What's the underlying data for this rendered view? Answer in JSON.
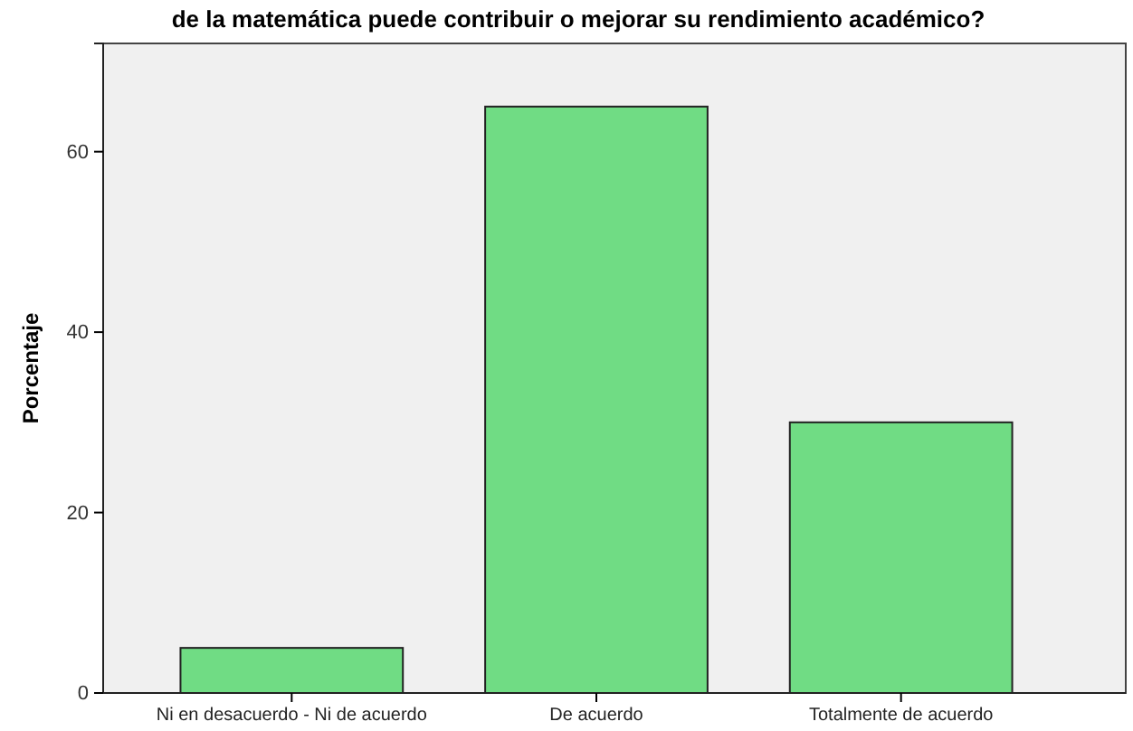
{
  "chart_data": {
    "type": "bar",
    "title": "de la matemática puede contribuir o mejorar su rendimiento académico?",
    "ylabel": "Porcentaje",
    "categories": [
      "Ni en desacuerdo - Ni de acuerdo",
      "De acuerdo",
      "Totalmente de acuerdo"
    ],
    "values": [
      5,
      65,
      30
    ],
    "color": "#70dc84",
    "ylim": [
      0,
      72
    ],
    "yticks": [
      0,
      20,
      40,
      60
    ],
    "grid": false
  }
}
